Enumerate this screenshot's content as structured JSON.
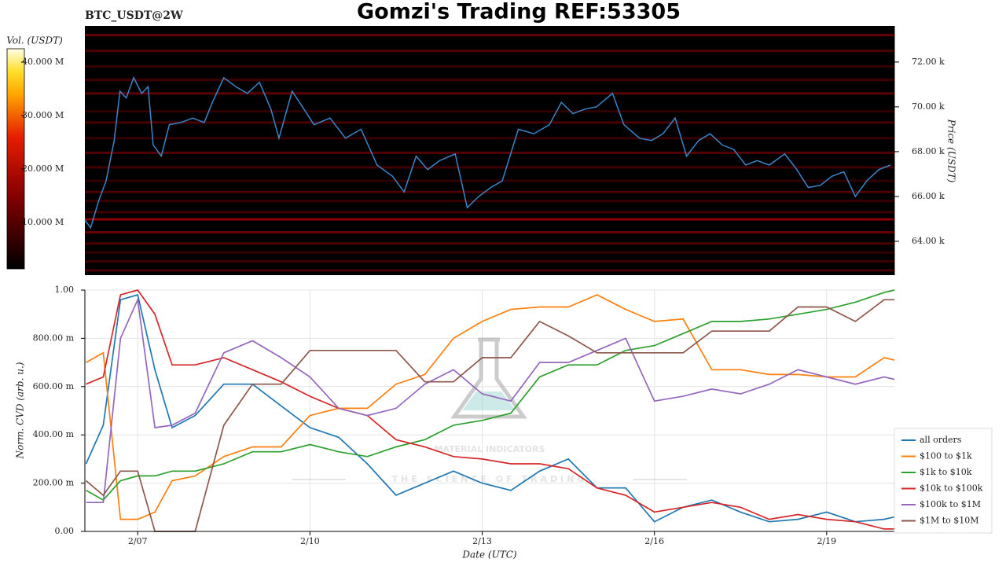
{
  "chart_data": [
    {
      "type": "heatmap",
      "title": "Gomzi's Trading REF:53305",
      "subtitle": "BTC_USDT@2W",
      "ylabel": "Price (USDT)",
      "colorbar_label": "Vol. (USDT)",
      "colorbar_lim": [
        1300000,
        42500000
      ],
      "colorbar_ticks": [
        {
          "value": 10000000,
          "label": "10.000 M"
        },
        {
          "value": 20000000,
          "label": "20.000 M"
        },
        {
          "value": 30000000,
          "label": "30.000 M"
        },
        {
          "value": 40000000,
          "label": "40.000 M"
        }
      ],
      "levels": {
        "prices": [
          62700,
          63100,
          63500,
          63900,
          64400,
          64980,
          65300,
          65800,
          66200,
          66700,
          67300,
          67950,
          68600,
          69300,
          69800,
          70600,
          71200,
          71800,
          72500,
          73200
        ],
        "volumes": [
          9000000,
          8000000,
          7000000,
          9000000,
          12000000,
          16000000,
          8000000,
          7000000,
          9000000,
          6000000,
          8000000,
          10000000,
          7000000,
          9000000,
          6000000,
          11000000,
          8000000,
          7000000,
          9000000,
          12000000
        ]
      },
      "xlim": [
        6.08,
        20.18
      ],
      "ylim": [
        62490,
        73610
      ],
      "yticks": [
        {
          "value": 64000,
          "label": "64.00 k"
        },
        {
          "value": 66000,
          "label": "66.00 k"
        },
        {
          "value": 68000,
          "label": "68.00 k"
        },
        {
          "value": 70000,
          "label": "70.00 k"
        },
        {
          "value": 72000,
          "label": "72.00 k"
        }
      ],
      "color": "#3a86c8",
      "x": [
        6.08,
        6.18,
        6.32,
        6.45,
        6.59,
        6.69,
        6.8,
        6.93,
        7.07,
        7.18,
        7.27,
        7.41,
        7.55,
        7.75,
        7.96,
        8.16,
        8.3,
        8.5,
        8.71,
        8.91,
        9.12,
        9.32,
        9.46,
        9.69,
        9.87,
        10.07,
        10.35,
        10.62,
        10.89,
        11.17,
        11.44,
        11.64,
        11.85,
        12.05,
        12.26,
        12.53,
        12.74,
        12.94,
        13.15,
        13.35,
        13.63,
        13.9,
        14.17,
        14.38,
        14.58,
        14.79,
        14.99,
        15.27,
        15.47,
        15.74,
        15.95,
        16.15,
        16.36,
        16.56,
        16.77,
        16.97,
        17.18,
        17.38,
        17.59,
        17.79,
        18.0,
        18.27,
        18.48,
        18.68,
        18.89,
        19.09,
        19.3,
        19.5,
        19.7,
        19.91,
        20.11
      ],
      "values": [
        64950,
        64600,
        65800,
        66700,
        68500,
        70700,
        70400,
        71300,
        70600,
        70900,
        68300,
        67800,
        69200,
        69300,
        69500,
        69300,
        70200,
        71300,
        70900,
        70600,
        71100,
        69900,
        68600,
        70700,
        70000,
        69200,
        69500,
        68600,
        69000,
        67400,
        66900,
        66200,
        67800,
        67200,
        67600,
        67900,
        65500,
        66000,
        66400,
        66700,
        69000,
        68800,
        69200,
        70200,
        69700,
        69900,
        70000,
        70600,
        69200,
        68600,
        68500,
        68800,
        69500,
        67800,
        68500,
        68800,
        68300,
        68100,
        67400,
        67600,
        67400,
        67900,
        67200,
        66400,
        66500,
        66900,
        67100,
        66000,
        66700,
        67200,
        67400
      ]
    },
    {
      "type": "line",
      "xlabel": "Date (UTC)",
      "ylabel": "Norm. CVD (arb. u.)",
      "annotations": [
        "MATERIAL INDICATORS",
        "THE SCIENCE OF TRADING"
      ],
      "xlim": [
        6.08,
        20.18
      ],
      "ylim": [
        0,
        1
      ],
      "xticks": [
        {
          "value": 7,
          "label": "2/07"
        },
        {
          "value": 10,
          "label": "2/10"
        },
        {
          "value": 13,
          "label": "2/13"
        },
        {
          "value": 16,
          "label": "2/16"
        },
        {
          "value": 19,
          "label": "2/19"
        }
      ],
      "yticks": [
        {
          "value": 0,
          "label": "0.00"
        },
        {
          "value": 0.2,
          "label": "200.00 m"
        },
        {
          "value": 0.4,
          "label": "400.00 m"
        },
        {
          "value": 0.6,
          "label": "600.00 m"
        },
        {
          "value": 0.8,
          "label": "800.00 m"
        },
        {
          "value": 1,
          "label": "1.00"
        }
      ],
      "grid": true,
      "legend": "lower right",
      "x": [
        6.1,
        6.4,
        6.7,
        7.0,
        7.3,
        7.6,
        8.0,
        8.5,
        9.0,
        9.5,
        10.0,
        10.5,
        11.0,
        11.5,
        12.0,
        12.5,
        13.0,
        13.5,
        14.0,
        14.5,
        15.0,
        15.5,
        16.0,
        16.5,
        17.0,
        17.5,
        18.0,
        18.5,
        19.0,
        19.5,
        20.0,
        20.18
      ],
      "series": [
        {
          "name": "all orders",
          "color": "#1f77b4",
          "values": [
            0.28,
            0.44,
            0.96,
            0.98,
            0.67,
            0.43,
            0.48,
            0.61,
            0.61,
            0.52,
            0.43,
            0.39,
            0.28,
            0.15,
            0.2,
            0.25,
            0.2,
            0.17,
            0.25,
            0.3,
            0.18,
            0.18,
            0.04,
            0.1,
            0.13,
            0.08,
            0.04,
            0.05,
            0.08,
            0.04,
            0.05,
            0.06
          ]
        },
        {
          "name": "$100 to $1k",
          "color": "#ff7f0e",
          "values": [
            0.7,
            0.74,
            0.05,
            0.05,
            0.08,
            0.21,
            0.23,
            0.31,
            0.35,
            0.35,
            0.48,
            0.51,
            0.51,
            0.61,
            0.65,
            0.8,
            0.87,
            0.92,
            0.93,
            0.93,
            0.98,
            0.92,
            0.87,
            0.88,
            0.67,
            0.67,
            0.65,
            0.65,
            0.64,
            0.64,
            0.72,
            0.71
          ]
        },
        {
          "name": "$1k to $10k",
          "color": "#2ca02c",
          "values": [
            0.17,
            0.13,
            0.21,
            0.23,
            0.23,
            0.25,
            0.25,
            0.28,
            0.33,
            0.33,
            0.36,
            0.33,
            0.31,
            0.35,
            0.38,
            0.44,
            0.46,
            0.49,
            0.64,
            0.69,
            0.69,
            0.75,
            0.77,
            0.82,
            0.87,
            0.87,
            0.88,
            0.9,
            0.92,
            0.95,
            0.99,
            1.0
          ]
        },
        {
          "name": "$10k to $100k",
          "color": "#d62728",
          "values": [
            0.61,
            0.64,
            0.98,
            1.0,
            0.9,
            0.69,
            0.69,
            0.72,
            0.67,
            0.62,
            0.56,
            0.51,
            0.48,
            0.38,
            0.35,
            0.31,
            0.3,
            0.28,
            0.28,
            0.26,
            0.18,
            0.15,
            0.08,
            0.1,
            0.12,
            0.1,
            0.05,
            0.07,
            0.05,
            0.04,
            0.01,
            0.01
          ]
        },
        {
          "name": "$100k to $1M",
          "color": "#9467bd",
          "values": [
            0.12,
            0.12,
            0.8,
            0.96,
            0.43,
            0.44,
            0.49,
            0.74,
            0.79,
            0.72,
            0.64,
            0.51,
            0.48,
            0.51,
            0.61,
            0.67,
            0.57,
            0.54,
            0.7,
            0.7,
            0.75,
            0.8,
            0.54,
            0.56,
            0.59,
            0.57,
            0.61,
            0.67,
            0.64,
            0.61,
            0.64,
            0.63
          ]
        },
        {
          "name": "$1M to $10M",
          "color": "#8c564b",
          "values": [
            0.21,
            0.15,
            0.25,
            0.25,
            0,
            0,
            0,
            0.44,
            0.61,
            0.61,
            0.75,
            0.75,
            0.75,
            0.75,
            0.62,
            0.62,
            0.72,
            0.72,
            0.87,
            0.81,
            0.74,
            0.74,
            0.74,
            0.74,
            0.83,
            0.83,
            0.83,
            0.93,
            0.93,
            0.87,
            0.96,
            0.96
          ]
        }
      ]
    }
  ]
}
